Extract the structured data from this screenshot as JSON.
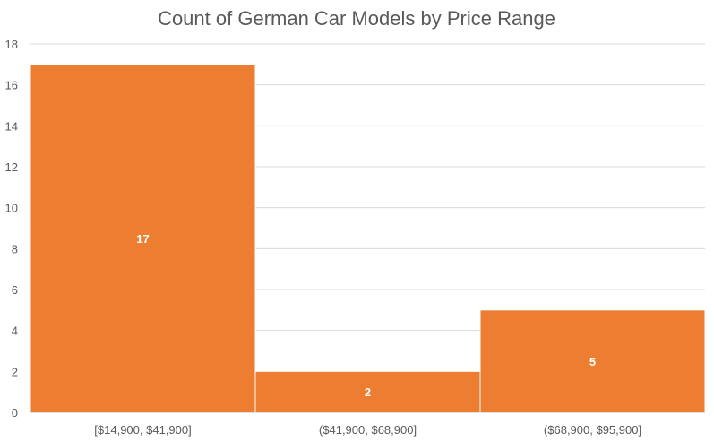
{
  "chart_data": {
    "type": "bar",
    "title": "Count of German Car Models by Price Range",
    "categories": [
      "[$14,900, $41,900]",
      "($41,900, $68,900]",
      "($68,900, $95,900]"
    ],
    "values": [
      17,
      2,
      5
    ],
    "data_labels": [
      "17",
      "2",
      "5"
    ],
    "ylim": [
      0,
      18
    ],
    "yticks": [
      0,
      2,
      4,
      6,
      8,
      10,
      12,
      14,
      16,
      18
    ],
    "grid": true,
    "bar_color": "#ED7D31",
    "legend": "none"
  }
}
